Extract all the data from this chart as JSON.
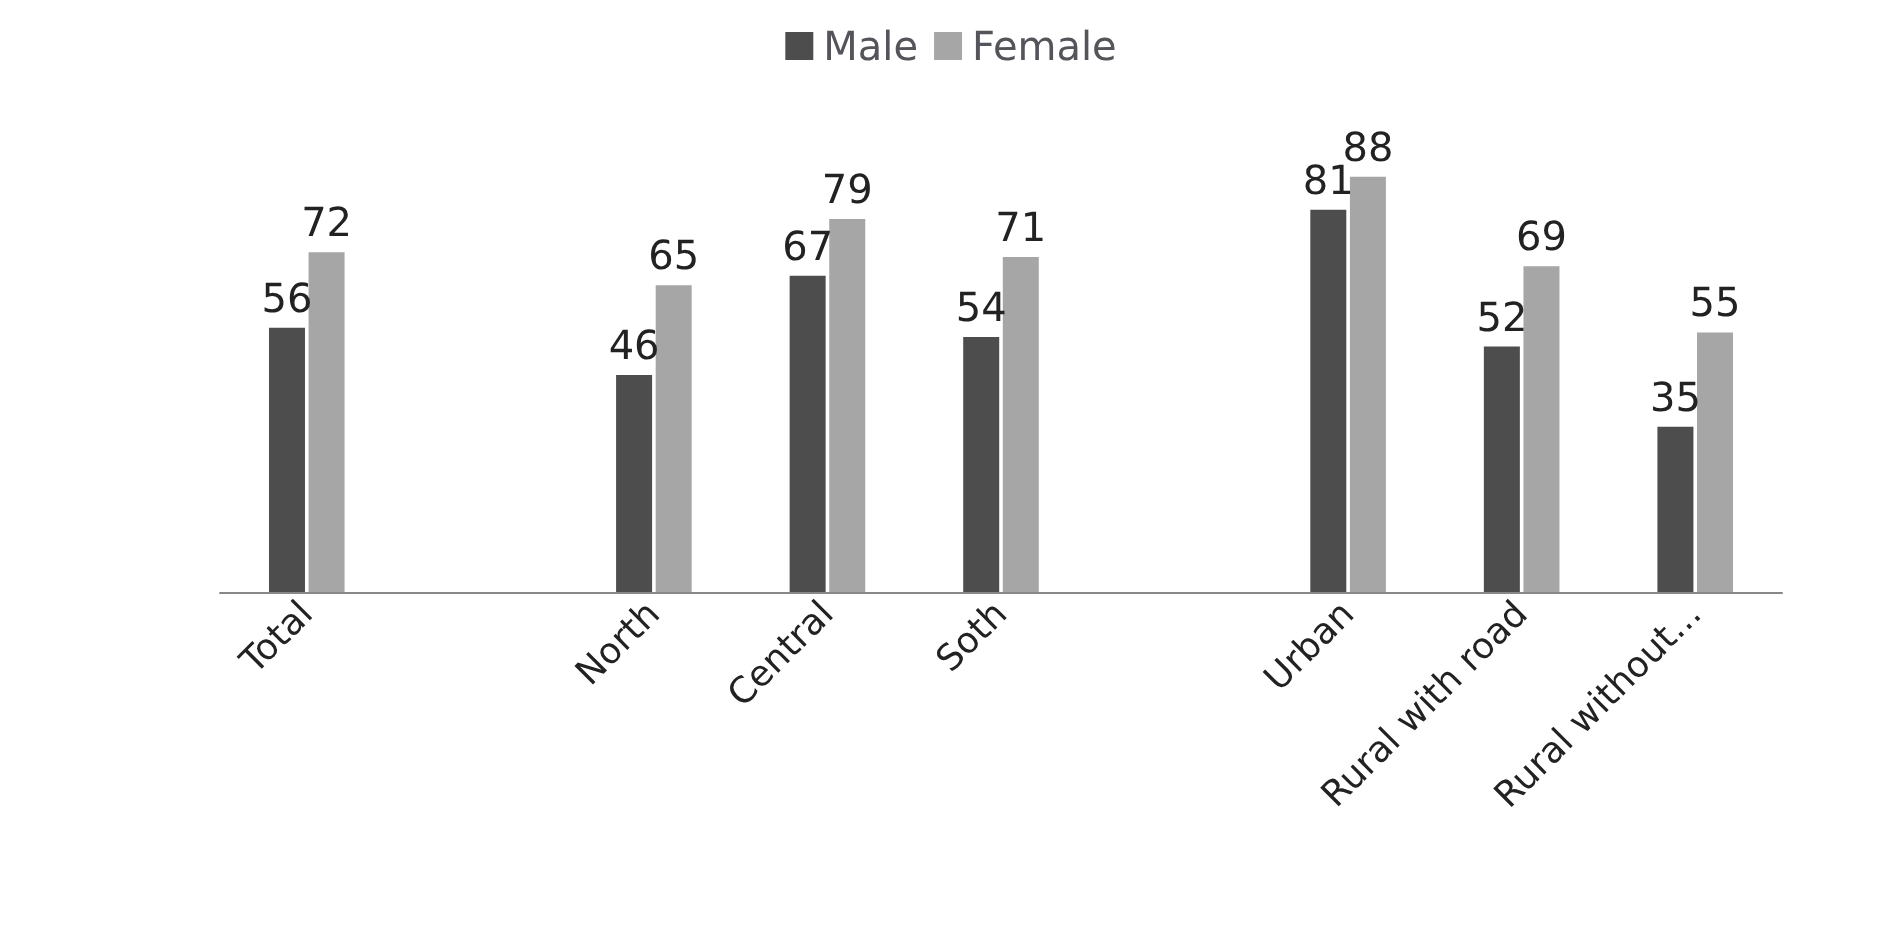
{
  "chart_data": {
    "type": "bar",
    "categories": [
      "Total",
      null,
      "North",
      "Central",
      "Soth",
      null,
      "Urban",
      "Rural with road",
      "Rural without..."
    ],
    "series": [
      {
        "name": "Male",
        "color": "#4d4d4d",
        "values": [
          56,
          null,
          46,
          67,
          54,
          null,
          81,
          52,
          35
        ]
      },
      {
        "name": "Female",
        "color": "#a6a6a6",
        "values": [
          72,
          null,
          65,
          79,
          71,
          null,
          88,
          69,
          55
        ]
      }
    ],
    "data_labels": true,
    "legend": "top"
  }
}
